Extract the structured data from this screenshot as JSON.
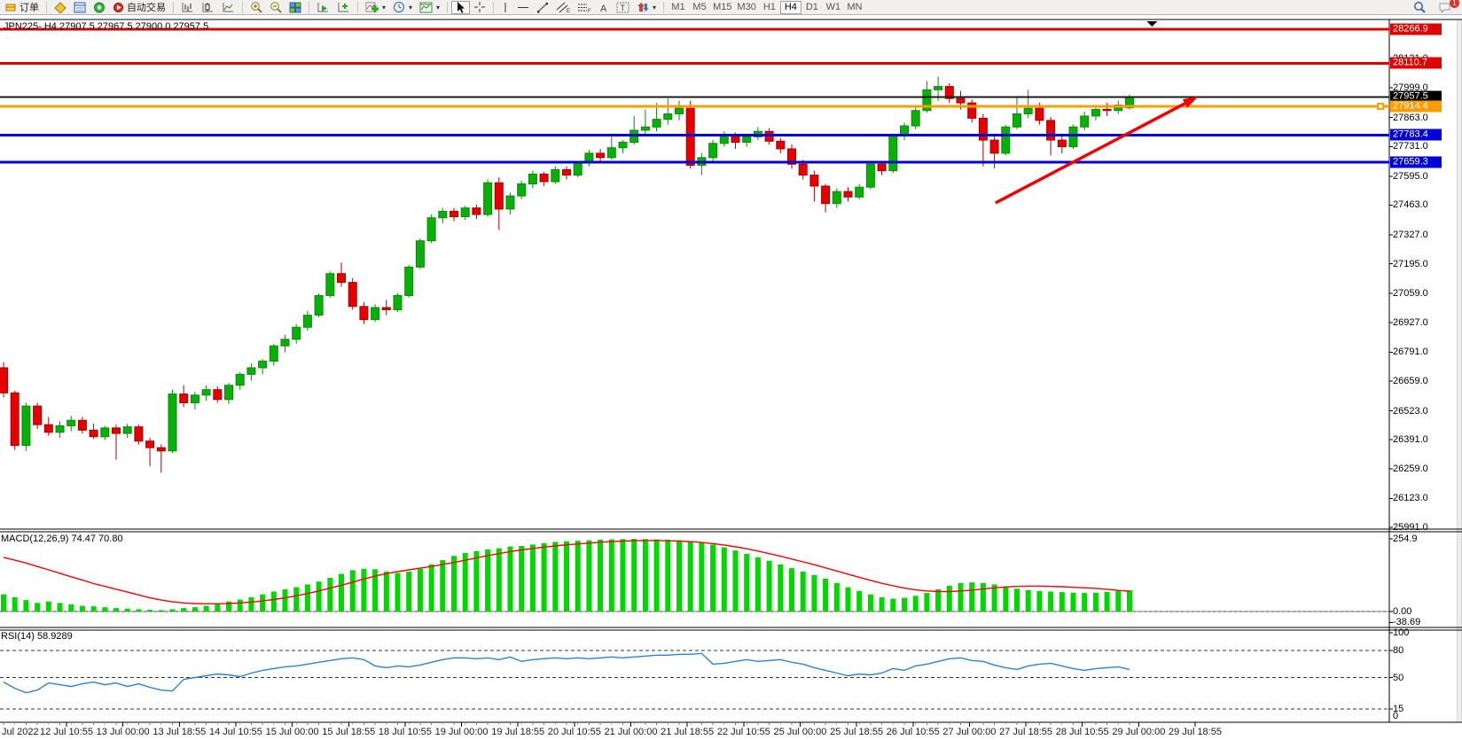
{
  "toolbar": {
    "order_label": "订单",
    "autotrading_label": "自动交易",
    "timeframes": [
      "M1",
      "M5",
      "M15",
      "M30",
      "H1",
      "H4",
      "D1",
      "W1",
      "MN"
    ],
    "active_timeframe": "H4",
    "chat_badge": "1"
  },
  "chart": {
    "title": "JPN225-,H4 27907.5 27967.5 27900.0 27957.5",
    "macd_label": "MACD(12,26,9) 74.47 70.80",
    "rsi_label": "RSI(14) 58.9289"
  },
  "time_axis": {
    "labels": [
      "Jul 2022",
      "12 Jul 10:55",
      "13 Jul 00:00",
      "13 Jul 18:55",
      "14 Jul 10:55",
      "15 Jul 00:00",
      "15 Jul 18:55",
      "18 Jul 10:55",
      "19 Jul 00:00",
      "19 Jul 18:55",
      "20 Jul 10:55",
      "21 Jul 00:00",
      "21 Jul 18:55",
      "22 Jul 10:55",
      "25 Jul 00:00",
      "25 Jul 18:55",
      "26 Jul 10:55",
      "27 Jul 00:00",
      "27 Jul 18:55",
      "28 Jul 10:55",
      "29 Jul 00:00",
      "29 Jul 18:55"
    ]
  },
  "chart_data": [
    {
      "type": "candlestick",
      "symbol": "JPN225-",
      "period": "H4",
      "current_bar": {
        "open": 27907.5,
        "high": 27967.5,
        "low": 27900.0,
        "close": 27957.5
      },
      "ylim": [
        25983,
        28311
      ],
      "yticks": [
        28131.0,
        27999.0,
        27863.0,
        27731.0,
        27595.0,
        27463.0,
        27327.0,
        27195.0,
        27059.0,
        26927.0,
        26791.0,
        26659.0,
        26523.0,
        26391.0,
        26259.0,
        26123.0,
        25991.0
      ],
      "levels": [
        {
          "value": 28266.9,
          "color": "#e00000",
          "width": 3
        },
        {
          "value": 28110.7,
          "color": "#e00000",
          "width": 3
        },
        {
          "value": 27957.5,
          "color": "#1a1a1a",
          "width": 2,
          "badge": "#000000"
        },
        {
          "value": 27914.4,
          "color": "#ff9c00",
          "width": 3,
          "handle": true
        },
        {
          "value": 27783.4,
          "color": "#0000d8",
          "width": 3
        },
        {
          "value": 27659.3,
          "color": "#0000d8",
          "width": 3
        }
      ],
      "colors": {
        "up": "#0ab00a",
        "up_border": "#068c06",
        "down": "#e60000",
        "down_border": "#a80000"
      },
      "annotations": {
        "trend_arrow": {
          "x1_bar": 88.1,
          "y1_price": 27473,
          "x2_bar": 106.1,
          "y2_price": 27959,
          "color": "#f40000"
        },
        "shift_marker_bar": 102.0
      },
      "candles": [
        [
          26720,
          26745,
          26585,
          26605
        ],
        [
          26605,
          26615,
          26345,
          26365
        ],
        [
          26365,
          26560,
          26340,
          26545
        ],
        [
          26545,
          26560,
          26440,
          26460
        ],
        [
          26460,
          26495,
          26410,
          26425
        ],
        [
          26425,
          26475,
          26400,
          26455
        ],
        [
          26455,
          26500,
          26430,
          26480
        ],
        [
          26480,
          26495,
          26420,
          26435
        ],
        [
          26435,
          26465,
          26395,
          26405
        ],
        [
          26405,
          26455,
          26390,
          26445
        ],
        [
          26445,
          26460,
          26300,
          26420
        ],
        [
          26420,
          26465,
          26400,
          26450
        ],
        [
          26450,
          26460,
          26370,
          26385
        ],
        [
          26385,
          26400,
          26270,
          26355
        ],
        [
          26355,
          26370,
          26240,
          26340
        ],
        [
          26340,
          26620,
          26330,
          26600
        ],
        [
          26600,
          26640,
          26540,
          26560
        ],
        [
          26560,
          26610,
          26530,
          26595
        ],
        [
          26595,
          26640,
          26570,
          26620
        ],
        [
          26620,
          26635,
          26560,
          26575
        ],
        [
          26575,
          26650,
          26555,
          26640
        ],
        [
          26640,
          26700,
          26620,
          26690
        ],
        [
          26690,
          26740,
          26660,
          26720
        ],
        [
          26720,
          26760,
          26690,
          26750
        ],
        [
          26750,
          26830,
          26730,
          26820
        ],
        [
          26820,
          26870,
          26790,
          26850
        ],
        [
          26850,
          26920,
          26830,
          26905
        ],
        [
          26905,
          26980,
          26890,
          26960
        ],
        [
          26960,
          27060,
          26950,
          27050
        ],
        [
          27050,
          27160,
          27040,
          27150
        ],
        [
          27150,
          27200,
          27090,
          27110
        ],
        [
          27110,
          27130,
          26985,
          27000
        ],
        [
          27000,
          27020,
          26920,
          26940
        ],
        [
          26940,
          27010,
          26930,
          26995
        ],
        [
          26995,
          27030,
          26960,
          26985
        ],
        [
          26985,
          27060,
          26975,
          27050
        ],
        [
          27050,
          27190,
          27040,
          27180
        ],
        [
          27180,
          27310,
          27170,
          27300
        ],
        [
          27300,
          27420,
          27290,
          27405
        ],
        [
          27405,
          27450,
          27380,
          27435
        ],
        [
          27435,
          27450,
          27390,
          27410
        ],
        [
          27410,
          27460,
          27395,
          27450
        ],
        [
          27450,
          27465,
          27400,
          27420
        ],
        [
          27420,
          27580,
          27410,
          27565
        ],
        [
          27565,
          27590,
          27350,
          27445
        ],
        [
          27445,
          27520,
          27420,
          27505
        ],
        [
          27505,
          27575,
          27490,
          27560
        ],
        [
          27560,
          27620,
          27540,
          27605
        ],
        [
          27605,
          27615,
          27550,
          27570
        ],
        [
          27570,
          27640,
          27560,
          27625
        ],
        [
          27625,
          27640,
          27580,
          27600
        ],
        [
          27600,
          27665,
          27590,
          27655
        ],
        [
          27655,
          27715,
          27640,
          27700
        ],
        [
          27700,
          27720,
          27655,
          27680
        ],
        [
          27680,
          27790,
          27670,
          27725
        ],
        [
          27725,
          27760,
          27700,
          27750
        ],
        [
          27750,
          27870,
          27740,
          27805
        ],
        [
          27805,
          27900,
          27780,
          27820
        ],
        [
          27820,
          27930,
          27800,
          27855
        ],
        [
          27855,
          27950,
          27830,
          27880
        ],
        [
          27880,
          27940,
          27850,
          27905
        ],
        [
          27905,
          27940,
          27630,
          27645
        ],
        [
          27645,
          27700,
          27600,
          27680
        ],
        [
          27680,
          27760,
          27665,
          27745
        ],
        [
          27745,
          27800,
          27730,
          27780
        ],
        [
          27780,
          27795,
          27720,
          27750
        ],
        [
          27750,
          27790,
          27730,
          27775
        ],
        [
          27775,
          27820,
          27760,
          27800
        ],
        [
          27800,
          27815,
          27740,
          27755
        ],
        [
          27755,
          27770,
          27700,
          27720
        ],
        [
          27720,
          27740,
          27630,
          27650
        ],
        [
          27650,
          27670,
          27580,
          27600
        ],
        [
          27600,
          27620,
          27480,
          27550
        ],
        [
          27550,
          27560,
          27430,
          27470
        ],
        [
          27470,
          27540,
          27450,
          27525
        ],
        [
          27525,
          27545,
          27480,
          27500
        ],
        [
          27500,
          27560,
          27490,
          27545
        ],
        [
          27545,
          27660,
          27535,
          27650
        ],
        [
          27650,
          27665,
          27600,
          27620
        ],
        [
          27620,
          27790,
          27610,
          27780
        ],
        [
          27780,
          27840,
          27760,
          27825
        ],
        [
          27825,
          27910,
          27810,
          27895
        ],
        [
          27895,
          28030,
          27885,
          27990
        ],
        [
          27990,
          28050,
          27940,
          28005
        ],
        [
          28005,
          28020,
          27930,
          27950
        ],
        [
          27950,
          27985,
          27900,
          27930
        ],
        [
          27930,
          27945,
          27840,
          27860
        ],
        [
          27860,
          27880,
          27640,
          27760
        ],
        [
          27760,
          27790,
          27630,
          27700
        ],
        [
          27700,
          27830,
          27690,
          27820
        ],
        [
          27820,
          27960,
          27810,
          27880
        ],
        [
          27880,
          27990,
          27860,
          27905
        ],
        [
          27905,
          27930,
          27830,
          27850
        ],
        [
          27850,
          27865,
          27690,
          27760
        ],
        [
          27760,
          27780,
          27700,
          27730
        ],
        [
          27730,
          27830,
          27720,
          27820
        ],
        [
          27820,
          27890,
          27805,
          27870
        ],
        [
          27870,
          27915,
          27850,
          27900
        ],
        [
          27900,
          27930,
          27870,
          27895
        ],
        [
          27895,
          27940,
          27880,
          27920
        ],
        [
          27907.5,
          27967.5,
          27900.0,
          27957.5
        ]
      ]
    },
    {
      "type": "bar",
      "name": "MACD(12,26,9)",
      "value_labels": [
        "74.47",
        "70.80"
      ],
      "ylim": [
        -56,
        280
      ],
      "yticks": [
        [
          254.9,
          "254.9"
        ],
        [
          0,
          "0.00"
        ],
        [
          -38.69,
          "-38.69"
        ]
      ],
      "colors": {
        "histogram": "#00d800",
        "signal": "#ff0000"
      },
      "values": [
        60,
        50,
        40,
        30,
        35,
        30,
        25,
        20,
        18,
        15,
        12,
        10,
        8,
        6,
        5,
        8,
        12,
        15,
        20,
        28,
        35,
        42,
        50,
        60,
        70,
        78,
        85,
        95,
        105,
        118,
        132,
        145,
        150,
        148,
        140,
        135,
        140,
        150,
        165,
        180,
        195,
        205,
        212,
        218,
        222,
        228,
        230,
        235,
        240,
        244,
        246,
        248,
        250,
        252,
        253,
        254,
        254.9,
        254,
        253,
        252,
        250,
        247,
        243,
        235,
        225,
        214,
        202,
        190,
        178,
        165,
        152,
        140,
        128,
        115,
        100,
        85,
        72,
        60,
        50,
        45,
        48,
        55,
        65,
        78,
        90,
        100,
        102,
        100,
        95,
        88,
        80,
        75,
        72,
        70,
        68,
        66,
        65,
        66,
        69,
        72,
        74.47
      ],
      "signal": [
        190,
        180,
        170,
        158,
        146,
        134,
        122,
        110,
        98,
        88,
        78,
        68,
        58,
        48,
        40,
        34,
        30,
        28,
        27,
        27,
        28,
        30,
        33,
        37,
        42,
        48,
        55,
        63,
        72,
        82,
        92,
        103,
        114,
        124,
        133,
        140,
        146,
        152,
        158,
        165,
        172,
        180,
        188,
        196,
        203,
        210,
        216,
        221,
        226,
        230,
        234,
        237,
        240,
        243,
        245,
        247,
        248,
        249,
        249,
        248,
        247,
        245,
        242,
        238,
        233,
        227,
        220,
        212,
        203,
        194,
        184,
        174,
        164,
        153,
        142,
        131,
        120,
        109,
        99,
        90,
        82,
        76,
        72,
        70,
        70,
        72,
        75,
        79,
        83,
        86,
        88,
        89,
        89,
        88,
        87,
        85,
        83,
        81,
        78,
        74,
        70.8
      ]
    },
    {
      "type": "line",
      "name": "RSI(14)",
      "value": "58.9289",
      "ylim": [
        0,
        103
      ],
      "levels": [
        80,
        50,
        15
      ],
      "yticks": [
        [
          100,
          "100"
        ],
        [
          80,
          "80"
        ],
        [
          50,
          "50"
        ],
        [
          15,
          "15"
        ],
        [
          0,
          "0"
        ]
      ],
      "color": "#2c83d6",
      "values": [
        45,
        38,
        33,
        36,
        44,
        42,
        40,
        43,
        45,
        42,
        44,
        40,
        43,
        39,
        36,
        35,
        48,
        50,
        52,
        54,
        53,
        51,
        55,
        58,
        60,
        62,
        63,
        65,
        67,
        69,
        71,
        72,
        70,
        63,
        61,
        63,
        62,
        64,
        67,
        70,
        72,
        72,
        71,
        72,
        70,
        73,
        68,
        70,
        71,
        72,
        71,
        72,
        71,
        72,
        73,
        72,
        73,
        74,
        75,
        75,
        76,
        76,
        77,
        65,
        66,
        68,
        70,
        68,
        69,
        70,
        67,
        65,
        61,
        58,
        55,
        52,
        54,
        53,
        55,
        60,
        58,
        63,
        65,
        68,
        71,
        72,
        69,
        68,
        64,
        61,
        59,
        63,
        65,
        66,
        63,
        60,
        58,
        60,
        61,
        62,
        58.93
      ]
    }
  ]
}
